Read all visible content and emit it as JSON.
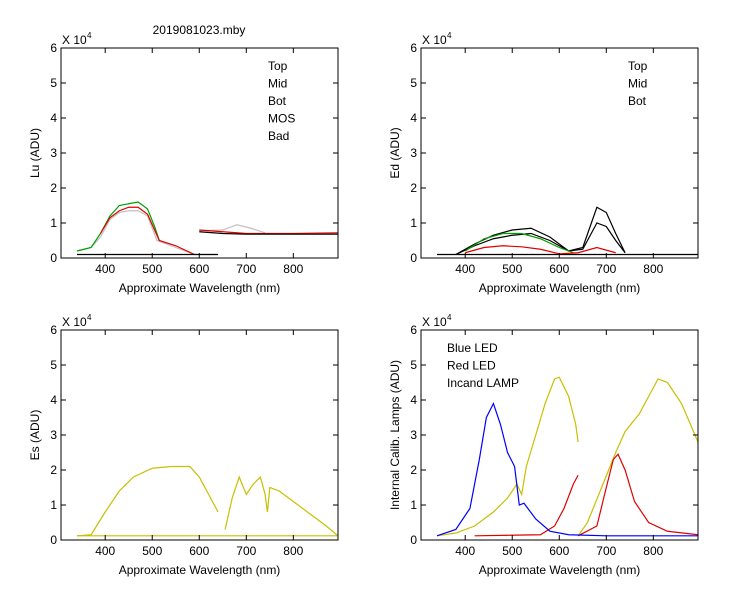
{
  "title": "2019081023.mby",
  "chart_data": [
    {
      "type": "line",
      "ylabel": "Lu (ADU)",
      "xlabel": "Approximate Wavelength (nm)",
      "multiplier": "X 10",
      "multiplier_exp": "4",
      "xlim": [
        306,
        895
      ],
      "ylim": [
        0,
        6
      ],
      "xticks": [
        400,
        500,
        600,
        700,
        800
      ],
      "yticks": [
        0,
        1,
        2,
        3,
        4,
        5,
        6
      ],
      "legend": [
        {
          "label": "Top",
          "color": "#000000"
        },
        {
          "label": "Mid",
          "color": "#e00000"
        },
        {
          "label": "Bot",
          "color": "#00a000"
        },
        {
          "label": "MOS",
          "color": "#0000ff"
        },
        {
          "label": "Bad",
          "color": "#c0c0c0"
        }
      ],
      "series": [
        {
          "name": "Bad",
          "color": "#c0c0c0",
          "points": [
            [
              340,
              0.2
            ],
            [
              370,
              0.3
            ],
            [
              390,
              0.6
            ],
            [
              410,
              1.1
            ],
            [
              430,
              1.3
            ],
            [
              450,
              1.35
            ],
            [
              470,
              1.35
            ],
            [
              490,
              1.2
            ],
            [
              510,
              0.5
            ],
            [
              550,
              0.3
            ],
            [
              590,
              0.1
            ],
            [
              640,
              0.1
            ]
          ]
        },
        {
          "name": "Bot",
          "color": "#00a000",
          "points": [
            [
              340,
              0.2
            ],
            [
              370,
              0.3
            ],
            [
              390,
              0.7
            ],
            [
              410,
              1.2
            ],
            [
              430,
              1.5
            ],
            [
              450,
              1.55
            ],
            [
              470,
              1.6
            ],
            [
              490,
              1.4
            ],
            [
              505,
              0.9
            ],
            [
              515,
              0.5
            ]
          ]
        },
        {
          "name": "Mid",
          "color": "#e00000",
          "points": [
            [
              390,
              0.7
            ],
            [
              410,
              1.15
            ],
            [
              430,
              1.35
            ],
            [
              450,
              1.45
            ],
            [
              470,
              1.45
            ],
            [
              490,
              1.25
            ],
            [
              505,
              0.8
            ],
            [
              515,
              0.5
            ],
            [
              550,
              0.35
            ],
            [
              590,
              0.1
            ]
          ]
        },
        {
          "name": "Top",
          "color": "#000000",
          "points": [
            [
              340,
              0.1
            ],
            [
              640,
              0.1
            ]
          ]
        },
        {
          "name": "Bad-red",
          "color": "#c0c0c0",
          "points": [
            [
              600,
              0.78
            ],
            [
              650,
              0.8
            ],
            [
              680,
              0.95
            ],
            [
              710,
              0.85
            ],
            [
              740,
              0.72
            ]
          ]
        },
        {
          "name": "Mid-red",
          "color": "#e00000",
          "points": [
            [
              600,
              0.8
            ],
            [
              650,
              0.75
            ],
            [
              700,
              0.7
            ],
            [
              800,
              0.7
            ],
            [
              895,
              0.72
            ]
          ]
        },
        {
          "name": "Top-red",
          "color": "#000000",
          "points": [
            [
              600,
              0.75
            ],
            [
              650,
              0.7
            ],
            [
              700,
              0.68
            ],
            [
              800,
              0.68
            ],
            [
              895,
              0.68
            ]
          ]
        }
      ]
    },
    {
      "type": "line",
      "ylabel": "Ed  (ADU)",
      "xlabel": "Approximate Wavelength (nm)",
      "multiplier": "X 10",
      "multiplier_exp": "4",
      "xlim": [
        306,
        895
      ],
      "ylim": [
        0,
        6
      ],
      "xticks": [
        400,
        500,
        600,
        700,
        800
      ],
      "yticks": [
        0,
        1,
        2,
        3,
        4,
        5,
        6
      ],
      "legend": [
        {
          "label": "Top",
          "color": "#000000"
        },
        {
          "label": "Mid",
          "color": "#e00000"
        },
        {
          "label": "Bot",
          "color": "#00a000"
        }
      ],
      "series": [
        {
          "name": "Top-base",
          "color": "#000000",
          "points": [
            [
              340,
              0.1
            ],
            [
              895,
              0.1
            ]
          ]
        },
        {
          "name": "Top-1",
          "color": "#000000",
          "points": [
            [
              380,
              0.1
            ],
            [
              420,
              0.4
            ],
            [
              460,
              0.65
            ],
            [
              500,
              0.8
            ],
            [
              540,
              0.85
            ],
            [
              580,
              0.6
            ],
            [
              620,
              0.2
            ],
            [
              650,
              0.3
            ],
            [
              680,
              1.45
            ],
            [
              700,
              1.3
            ],
            [
              720,
              0.7
            ],
            [
              740,
              0.15
            ]
          ]
        },
        {
          "name": "Top-2",
          "color": "#000000",
          "points": [
            [
              380,
              0.1
            ],
            [
              420,
              0.35
            ],
            [
              460,
              0.55
            ],
            [
              500,
              0.65
            ],
            [
              540,
              0.7
            ],
            [
              580,
              0.5
            ],
            [
              620,
              0.2
            ],
            [
              650,
              0.25
            ],
            [
              680,
              1.0
            ],
            [
              700,
              0.9
            ],
            [
              720,
              0.5
            ],
            [
              740,
              0.15
            ]
          ]
        },
        {
          "name": "Bot",
          "color": "#00a000",
          "points": [
            [
              400,
              0.2
            ],
            [
              440,
              0.55
            ],
            [
              480,
              0.7
            ],
            [
              520,
              0.7
            ],
            [
              560,
              0.55
            ],
            [
              600,
              0.3
            ],
            [
              630,
              0.15
            ]
          ]
        },
        {
          "name": "Mid",
          "color": "#e00000",
          "points": [
            [
              400,
              0.15
            ],
            [
              440,
              0.3
            ],
            [
              480,
              0.35
            ],
            [
              520,
              0.32
            ],
            [
              560,
              0.25
            ],
            [
              600,
              0.12
            ],
            [
              640,
              0.15
            ],
            [
              680,
              0.3
            ],
            [
              720,
              0.15
            ]
          ]
        }
      ]
    },
    {
      "type": "line",
      "ylabel": "Es  (ADU)",
      "xlabel": "Approximate Wavelength (nm)",
      "multiplier": "X 10",
      "multiplier_exp": "4",
      "xlim": [
        306,
        895
      ],
      "ylim": [
        0,
        6
      ],
      "xticks": [
        400,
        500,
        600,
        700,
        800
      ],
      "yticks": [
        0,
        1,
        2,
        3,
        4,
        5,
        6
      ],
      "legend": [],
      "series": [
        {
          "name": "Es-base",
          "color": "#c8c000",
          "points": [
            [
              340,
              0.12
            ],
            [
              895,
              0.12
            ]
          ]
        },
        {
          "name": "Es-1",
          "color": "#c8c000",
          "points": [
            [
              340,
              0.12
            ],
            [
              370,
              0.15
            ],
            [
              400,
              0.8
            ],
            [
              430,
              1.4
            ],
            [
              460,
              1.8
            ],
            [
              500,
              2.05
            ],
            [
              540,
              2.1
            ],
            [
              580,
              2.1
            ],
            [
              600,
              1.8
            ],
            [
              620,
              1.3
            ],
            [
              640,
              0.8
            ]
          ]
        },
        {
          "name": "Es-2",
          "color": "#c8c000",
          "points": [
            [
              655,
              0.3
            ],
            [
              670,
              1.2
            ],
            [
              685,
              1.8
            ],
            [
              700,
              1.3
            ],
            [
              715,
              1.6
            ],
            [
              730,
              1.8
            ],
            [
              740,
              1.3
            ],
            [
              745,
              0.8
            ],
            [
              750,
              1.5
            ],
            [
              770,
              1.4
            ],
            [
              800,
              1.1
            ],
            [
              840,
              0.7
            ],
            [
              870,
              0.4
            ],
            [
              895,
              0.12
            ]
          ]
        }
      ]
    },
    {
      "type": "line",
      "ylabel": "Internal Calib. Lamps (ADU)",
      "xlabel": "Approximate Wavelength (nm)",
      "multiplier": "X 10",
      "multiplier_exp": "4",
      "xlim": [
        306,
        895
      ],
      "ylim": [
        0,
        6
      ],
      "xticks": [
        400,
        500,
        600,
        700,
        800
      ],
      "yticks": [
        0,
        1,
        2,
        3,
        4,
        5,
        6
      ],
      "legend": [
        {
          "label": "Blue LED",
          "color": "#0000ff"
        },
        {
          "label": "Red LED",
          "color": "#e00000"
        },
        {
          "label": "Incand LAMP",
          "color": "#c8c000"
        }
      ],
      "series": [
        {
          "name": "Incand LAMP 1",
          "color": "#c8c000",
          "points": [
            [
              340,
              0.12
            ],
            [
              380,
              0.2
            ],
            [
              420,
              0.4
            ],
            [
              460,
              0.8
            ],
            [
              490,
              1.2
            ],
            [
              510,
              1.6
            ],
            [
              520,
              1.3
            ],
            [
              530,
              2.1
            ],
            [
              550,
              3.0
            ],
            [
              570,
              3.9
            ],
            [
              590,
              4.6
            ],
            [
              600,
              4.65
            ],
            [
              620,
              4.1
            ],
            [
              635,
              3.3
            ],
            [
              640,
              2.8
            ]
          ]
        },
        {
          "name": "Incand LAMP 2",
          "color": "#c8c000",
          "points": [
            [
              640,
              0.12
            ],
            [
              660,
              0.5
            ],
            [
              690,
              1.5
            ],
            [
              720,
              2.5
            ],
            [
              740,
              3.1
            ],
            [
              770,
              3.6
            ],
            [
              790,
              4.1
            ],
            [
              810,
              4.6
            ],
            [
              830,
              4.5
            ],
            [
              860,
              3.9
            ],
            [
              895,
              2.8
            ]
          ]
        },
        {
          "name": "Red LED 1",
          "color": "#e00000",
          "points": [
            [
              420,
              0.12
            ],
            [
              560,
              0.15
            ],
            [
              590,
              0.4
            ],
            [
              610,
              0.9
            ],
            [
              630,
              1.6
            ],
            [
              640,
              1.85
            ]
          ]
        },
        {
          "name": "Red LED 2",
          "color": "#e00000",
          "points": [
            [
              640,
              0.12
            ],
            [
              680,
              0.4
            ],
            [
              700,
              1.5
            ],
            [
              715,
              2.3
            ],
            [
              725,
              2.45
            ],
            [
              740,
              2.0
            ],
            [
              760,
              1.1
            ],
            [
              790,
              0.5
            ],
            [
              830,
              0.25
            ],
            [
              895,
              0.15
            ]
          ]
        },
        {
          "name": "Blue LED",
          "color": "#0000ff",
          "points": [
            [
              340,
              0.12
            ],
            [
              380,
              0.3
            ],
            [
              410,
              0.9
            ],
            [
              430,
              2.3
            ],
            [
              445,
              3.5
            ],
            [
              460,
              3.9
            ],
            [
              475,
              3.3
            ],
            [
              490,
              2.5
            ],
            [
              505,
              2.1
            ],
            [
              515,
              1.0
            ],
            [
              525,
              1.05
            ],
            [
              550,
              0.6
            ],
            [
              580,
              0.25
            ],
            [
              620,
              0.15
            ],
            [
              700,
              0.12
            ],
            [
              895,
              0.12
            ]
          ]
        }
      ]
    }
  ]
}
